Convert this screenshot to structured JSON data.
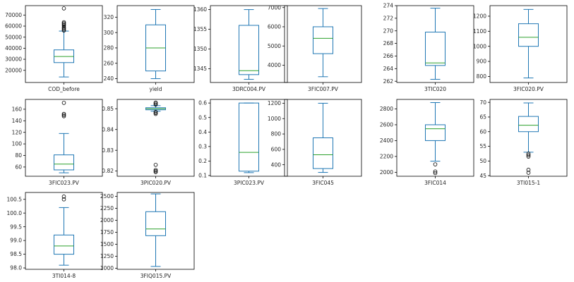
{
  "chart_data": [
    {
      "type": "box",
      "xlabel": "COD_before",
      "yticks": [
        20000,
        30000,
        40000,
        50000,
        60000,
        70000
      ],
      "ylim": [
        9000,
        78500
      ],
      "box": {
        "whislo": 14000,
        "q1": 27000,
        "med": 32500,
        "q3": 38500,
        "whishi": 55500
      },
      "fliers": [
        56000,
        57000,
        58000,
        59000,
        60500,
        61500,
        62500,
        63500,
        76000
      ]
    },
    {
      "type": "box",
      "xlabel": "yield",
      "yticks": [
        240,
        260,
        280,
        300,
        320
      ],
      "ylim": [
        235,
        335
      ],
      "box": {
        "whislo": 240,
        "q1": 250,
        "med": 280,
        "q3": 310,
        "whishi": 330
      },
      "fliers": []
    },
    {
      "type": "box",
      "xlabel": "3DRC004.PV",
      "yticks": [
        1345,
        1350,
        1355,
        1360
      ],
      "ylim": [
        1341.5,
        1361
      ],
      "box": {
        "whislo": 1342.3,
        "q1": 1343.5,
        "med": 1344.5,
        "q3": 1356,
        "whishi": 1360
      },
      "fliers": []
    },
    {
      "type": "box",
      "xlabel": "3FIC007.PV",
      "yticks": [
        4000,
        5000,
        6000,
        7000
      ],
      "ylim": [
        3100,
        7100
      ],
      "box": {
        "whislo": 3400,
        "q1": 4600,
        "med": 5400,
        "q3": 6000,
        "whishi": 6950
      },
      "fliers": []
    },
    {
      "type": "box",
      "xlabel": "3TIC020",
      "yticks": [
        262,
        264,
        266,
        268,
        270,
        272,
        274
      ],
      "ylim": [
        261.8,
        274
      ],
      "box": {
        "whislo": 262.3,
        "q1": 264.5,
        "med": 264.9,
        "q3": 269.8,
        "whishi": 273.6
      },
      "fliers": []
    },
    {
      "type": "box",
      "xlabel": "3FIC020.PV",
      "yticks": [
        800,
        900,
        1000,
        1100,
        1200
      ],
      "ylim": [
        760,
        1270
      ],
      "box": {
        "whislo": 790,
        "q1": 1000,
        "med": 1060,
        "q3": 1150,
        "whishi": 1245
      },
      "fliers": []
    },
    {
      "type": "box",
      "xlabel": "3FIC023.PV",
      "yticks": [
        60,
        80,
        100,
        120,
        140,
        160
      ],
      "ylim": [
        44,
        177
      ],
      "box": {
        "whislo": 50,
        "q1": 55,
        "med": 65,
        "q3": 81,
        "whishi": 118
      },
      "fliers": [
        148,
        150,
        152,
        171
      ]
    },
    {
      "type": "box",
      "xlabel": "3PIC020.PV",
      "yticks": [
        0.82,
        0.83,
        0.84,
        0.85
      ],
      "ylim": [
        0.8175,
        0.8545
      ],
      "box": {
        "whislo": 0.8488,
        "q1": 0.8495,
        "med": 0.85,
        "q3": 0.8505,
        "whishi": 0.8515
      },
      "fliers": [
        0.8485,
        0.848,
        0.8475,
        0.852,
        0.8525,
        0.853,
        0.823,
        0.8205,
        0.82,
        0.8195
      ]
    },
    {
      "type": "box",
      "xlabel": "3PIC023.PV",
      "yticks": [
        0.1,
        0.2,
        0.3,
        0.4,
        0.5,
        0.6
      ],
      "ylim": [
        0.095,
        0.625
      ],
      "box": {
        "whislo": 0.12,
        "q1": 0.13,
        "med": 0.26,
        "q3": 0.6,
        "whishi": 0.6
      },
      "fliers": []
    },
    {
      "type": "box",
      "xlabel": "3FIC045",
      "yticks": [
        400,
        600,
        800,
        1000,
        1200
      ],
      "ylim": [
        250,
        1250
      ],
      "box": {
        "whislo": 300,
        "q1": 350,
        "med": 530,
        "q3": 750,
        "whishi": 1200
      },
      "fliers": []
    },
    {
      "type": "box",
      "xlabel": "3FIC014",
      "yticks": [
        2000,
        2200,
        2400,
        2600,
        2800
      ],
      "ylim": [
        1950,
        2920
      ],
      "box": {
        "whislo": 2140,
        "q1": 2400,
        "med": 2550,
        "q3": 2600,
        "whishi": 2880
      },
      "fliers": [
        2100,
        2010,
        1990
      ]
    },
    {
      "type": "box",
      "xlabel": "3TI015-1",
      "yticks": [
        45,
        50,
        55,
        60,
        65,
        70
      ],
      "ylim": [
        44.8,
        71
      ],
      "box": {
        "whislo": 53,
        "q1": 60,
        "med": 62.2,
        "q3": 65.2,
        "whishi": 69.8
      },
      "fliers": [
        52,
        51.5,
        52.5,
        47,
        46
      ]
    },
    {
      "type": "box",
      "xlabel": "3TI014-8",
      "yticks": [
        98.0,
        98.5,
        99.0,
        99.5,
        100.0,
        100.5
      ],
      "ylim": [
        97.95,
        100.75
      ],
      "box": {
        "whislo": 98.1,
        "q1": 98.5,
        "med": 98.8,
        "q3": 99.2,
        "whishi": 100.2
      },
      "fliers": [
        100.5,
        100.6
      ]
    },
    {
      "type": "box",
      "xlabel": "3FIQ015.PV",
      "yticks": [
        1000,
        1250,
        1500,
        1750,
        2000,
        2250,
        2500
      ],
      "ylim": [
        980,
        2580
      ],
      "box": {
        "whislo": 1040,
        "q1": 1680,
        "med": 1820,
        "q3": 2180,
        "whishi": 2550
      },
      "fliers": []
    }
  ],
  "colors": {
    "box": "#1f77b4",
    "median": "#2ca02c",
    "axis": "#000000",
    "flier": "#000000"
  }
}
